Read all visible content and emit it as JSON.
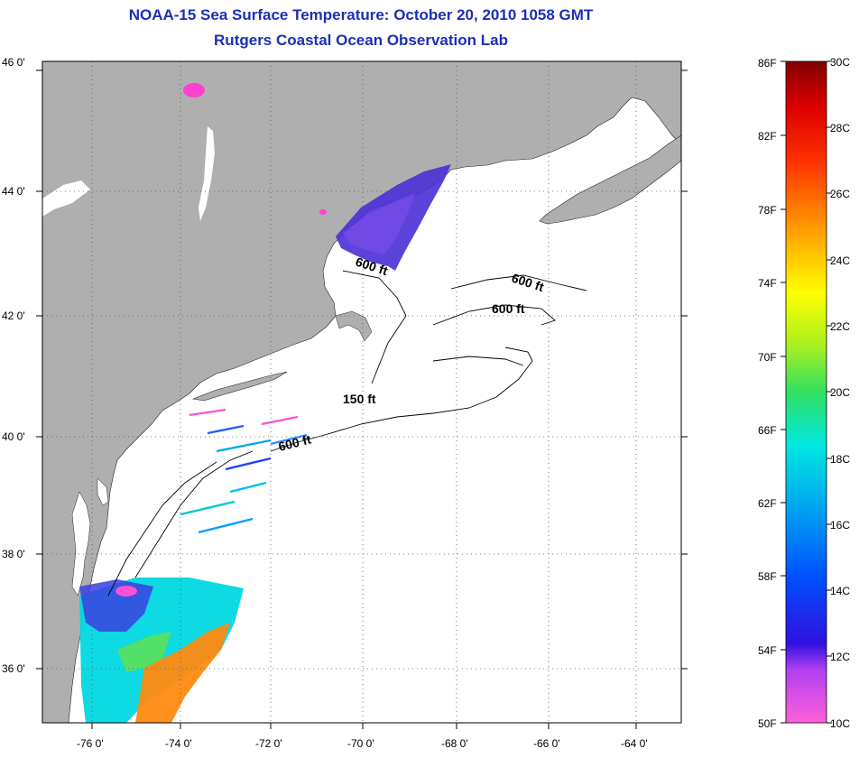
{
  "title": "NOAA-15 Sea Surface Temperature:  October 20, 2010 1058 GMT",
  "subtitle": "Rutgers Coastal Ocean Observation Lab",
  "lat_labels": [
    "46 0'",
    "44 0'",
    "42 0'",
    "40 0'",
    "38 0'",
    "36 0'"
  ],
  "lon_labels": [
    "-76 0'",
    "-74 0'",
    "-72 0'",
    "-70 0'",
    "-68 0'",
    "-66 0'",
    "-64 0'"
  ],
  "contours": {
    "c600a": "600 ft",
    "c600b": "600 ft",
    "c600c": "600 ft",
    "c600d": "600 ft",
    "c150": "150 ft"
  },
  "colorbar": {
    "fahrenheit": [
      "86F",
      "82F",
      "78F",
      "74F",
      "70F",
      "66F",
      "62F",
      "58F",
      "54F",
      "50F"
    ],
    "celsius": [
      "30C",
      "28C",
      "26C",
      "24C",
      "22C",
      "20C",
      "18C",
      "16C",
      "14C",
      "12C",
      "10C"
    ]
  },
  "colors": {
    "land": "#afafaf",
    "ocean": "#ffffff",
    "title": "#1c2fb4",
    "grid": "#555555"
  }
}
